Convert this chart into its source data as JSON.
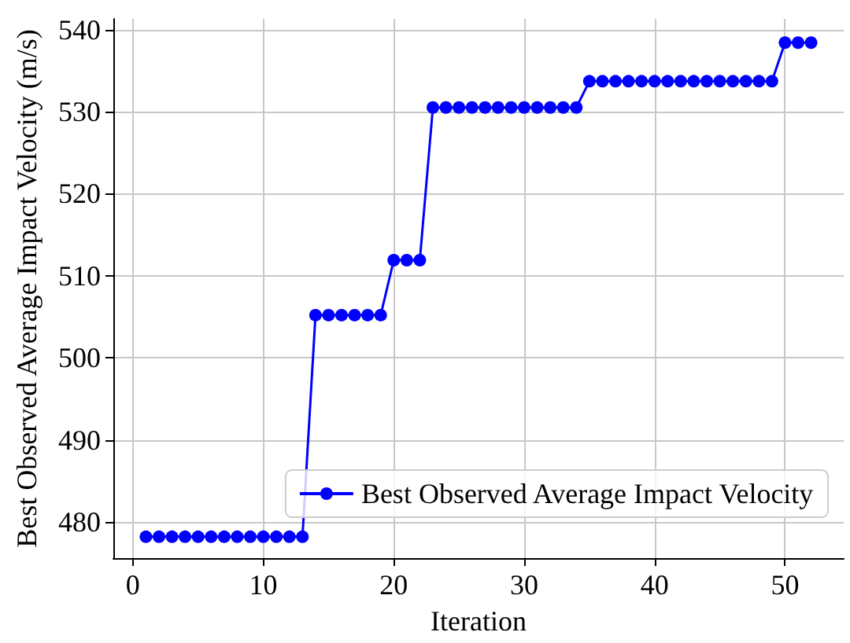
{
  "chart_data": {
    "type": "line",
    "xlabel": "Iteration",
    "ylabel": "Best Observed Average Impact Velocity (m/s)",
    "x": [
      1,
      2,
      3,
      4,
      5,
      6,
      7,
      8,
      9,
      10,
      11,
      12,
      13,
      14,
      15,
      16,
      17,
      18,
      19,
      20,
      21,
      22,
      23,
      24,
      25,
      26,
      27,
      28,
      29,
      30,
      31,
      32,
      33,
      34,
      35,
      36,
      37,
      38,
      39,
      40,
      41,
      42,
      43,
      44,
      45,
      46,
      47,
      48,
      49,
      50,
      51,
      52
    ],
    "series": [
      {
        "name": "Best Observed Average Impact Velocity",
        "color": "#0000ff",
        "values": [
          478.2,
          478.2,
          478.2,
          478.2,
          478.2,
          478.2,
          478.2,
          478.2,
          478.2,
          478.2,
          478.2,
          478.2,
          478.2,
          505.2,
          505.2,
          505.2,
          505.2,
          505.2,
          505.2,
          511.9,
          511.9,
          511.9,
          530.5,
          530.5,
          530.5,
          530.5,
          530.5,
          530.5,
          530.5,
          530.5,
          530.5,
          530.5,
          530.5,
          530.5,
          533.7,
          533.7,
          533.7,
          533.7,
          533.7,
          533.7,
          533.7,
          533.7,
          533.7,
          533.7,
          533.7,
          533.7,
          533.7,
          533.7,
          533.7,
          538.4,
          538.4,
          538.4
        ]
      }
    ],
    "xlim": [
      -1.5,
      54.5
    ],
    "ylim": [
      475.6,
      541.3
    ],
    "xticks": [
      0,
      10,
      20,
      30,
      40,
      50
    ],
    "yticks": [
      480,
      490,
      500,
      510,
      520,
      530,
      540
    ],
    "grid": true,
    "legend": "bottom right",
    "marker": "circle",
    "line_style": "solid"
  }
}
